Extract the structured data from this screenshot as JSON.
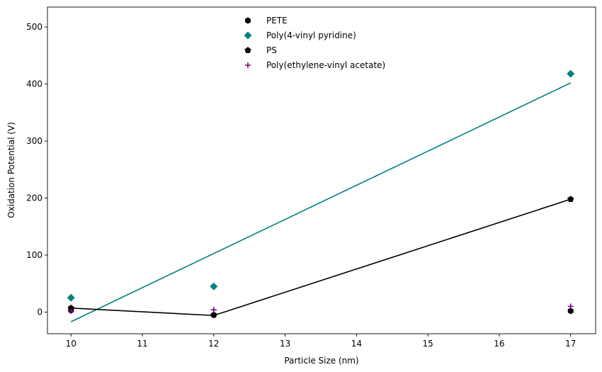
{
  "chart_data": {
    "type": "scatter",
    "title": "",
    "xlabel": "Particle Size (nm)",
    "ylabel": "Oxidation Potential (V)",
    "xlim": [
      9.67,
      17.35
    ],
    "ylim": [
      -38,
      535
    ],
    "xticks": [
      10,
      11,
      12,
      13,
      14,
      15,
      16,
      17
    ],
    "yticks": [
      0,
      100,
      200,
      300,
      400,
      500
    ],
    "grid": false,
    "legend_position": "top-center",
    "series": [
      {
        "name": "PETE",
        "marker": "hexagon",
        "color": "#000000",
        "x": [
          10,
          12,
          17
        ],
        "y": [
          3,
          -5,
          2
        ]
      },
      {
        "name": "Poly(4-vinyl pyridine)",
        "marker": "diamond",
        "color": "#008080",
        "x": [
          10,
          12,
          17
        ],
        "y": [
          25,
          45,
          418
        ]
      },
      {
        "name": "PS",
        "marker": "pentagon",
        "color": "#000000",
        "x": [
          10,
          12,
          17
        ],
        "y": [
          7,
          -5,
          198
        ]
      },
      {
        "name": "Poly(ethylene-vinyl acetate)",
        "marker": "plus",
        "color": "#800080",
        "x": [
          10,
          12,
          17
        ],
        "y": [
          2,
          4,
          10
        ]
      }
    ],
    "lines": [
      {
        "color": "#008080",
        "x": [
          10,
          17
        ],
        "y": [
          -17,
          402
        ]
      },
      {
        "color": "#000000",
        "x": [
          10,
          12,
          17
        ],
        "y": [
          7,
          -6,
          198
        ]
      }
    ]
  }
}
